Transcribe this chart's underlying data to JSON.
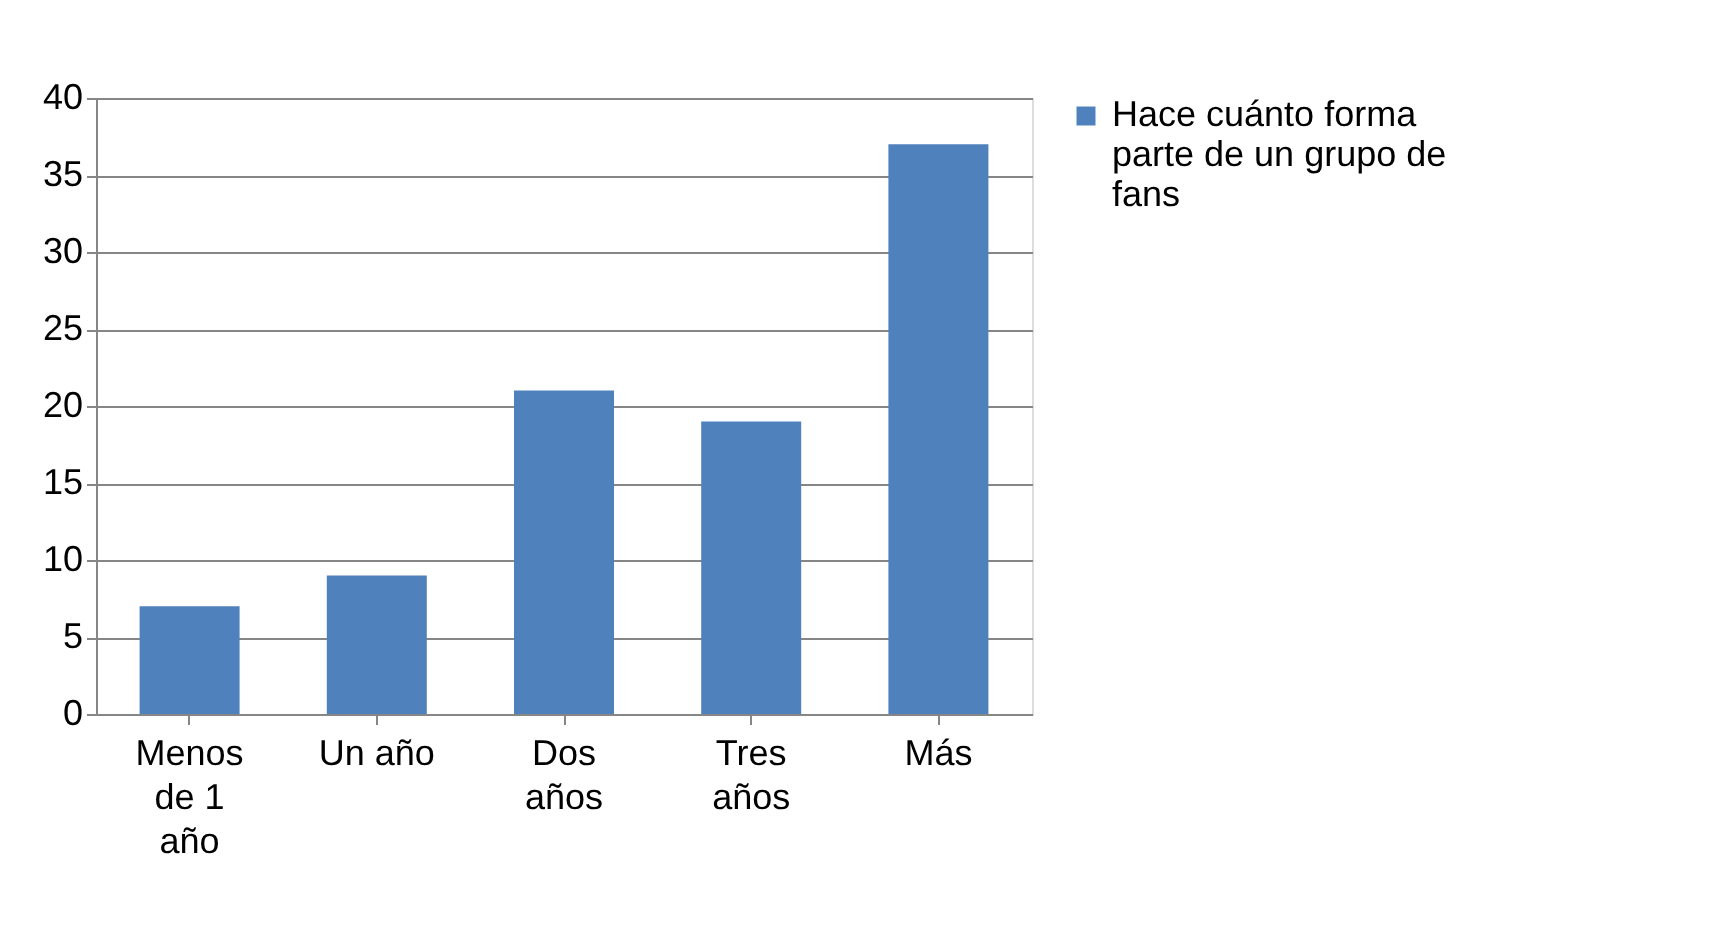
{
  "chart_data": {
    "type": "bar",
    "categories": [
      "Menos de 1 año",
      "Un año",
      "Dos años",
      "Tres años",
      "Más"
    ],
    "series": [
      {
        "name": "Hace cuánto forma parte de un grupo de fans",
        "color": "#4f81bd",
        "values": [
          7,
          9,
          21,
          19,
          37
        ]
      }
    ],
    "ylim": [
      0,
      40
    ],
    "yticks": [
      0,
      5,
      10,
      15,
      20,
      25,
      30,
      35,
      40
    ],
    "grid": "y",
    "legend": "right"
  }
}
